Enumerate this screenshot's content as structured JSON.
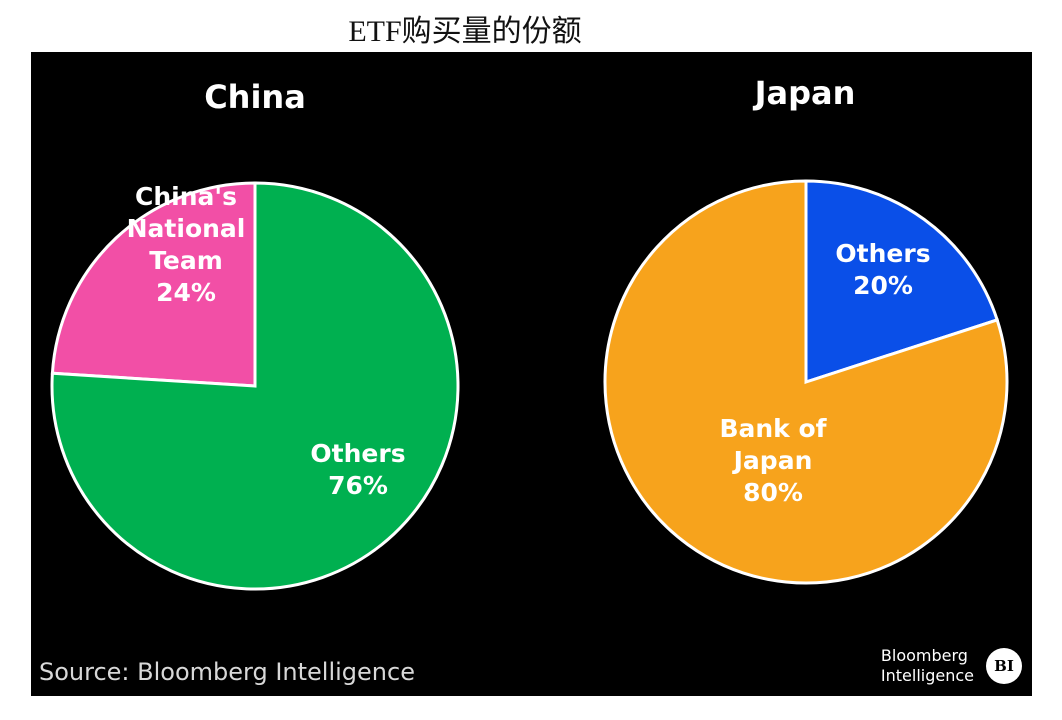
{
  "page_title": "ETF购买量的份额",
  "source_text": "Source: Bloomberg Intelligence",
  "brand": {
    "line1": "Bloomberg",
    "line2": "Intelligence",
    "badge": "BI"
  },
  "colors": {
    "background": "#000000",
    "china_national_team": "#f24fa6",
    "china_others": "#00b050",
    "japan_others": "#0a4fe8",
    "japan_boj": "#f7a31c"
  },
  "chart_data": [
    {
      "type": "pie",
      "title": "China",
      "slices": [
        {
          "label": [
            "China's",
            "National",
            "Team",
            "24%"
          ],
          "value": 24,
          "color": "#f24fa6"
        },
        {
          "label": [
            "Others",
            "76%"
          ],
          "value": 76,
          "color": "#00b050"
        }
      ]
    },
    {
      "type": "pie",
      "title": "Japan",
      "slices": [
        {
          "label": [
            "Others",
            "20%"
          ],
          "value": 20,
          "color": "#0a4fe8"
        },
        {
          "label": [
            "Bank of",
            "Japan",
            "80%"
          ],
          "value": 80,
          "color": "#f7a31c"
        }
      ]
    }
  ]
}
